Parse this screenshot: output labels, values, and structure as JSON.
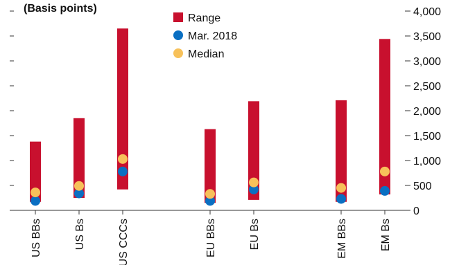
{
  "chart_data": {
    "type": "range-bar",
    "title": "",
    "subtitle": "(Basis points)",
    "categories": [
      "US BBs",
      "US Bs",
      "US CCCs",
      "EU BBs",
      "EU Bs",
      "EM BBs",
      "EM Bs"
    ],
    "groups": [
      [
        0,
        1,
        2
      ],
      [
        3,
        4
      ],
      [
        5,
        6
      ]
    ],
    "ylim": [
      0,
      4000
    ],
    "yticks": [
      0,
      500,
      1000,
      1500,
      2000,
      2500,
      3000,
      3500,
      4000
    ],
    "ytick_labels": [
      "0",
      "500",
      "1,000",
      "1,500",
      "2,000",
      "2,500",
      "3,000",
      "3,500",
      "4,000"
    ],
    "y_axis_position": "right",
    "grid": false,
    "legend_position": "top-center",
    "series": [
      {
        "name": "Range",
        "kind": "range",
        "color": "#c8102e",
        "low": [
          170,
          250,
          420,
          150,
          210,
          170,
          320
        ],
        "high": [
          1380,
          1850,
          3650,
          1630,
          2190,
          2210,
          3440
        ]
      },
      {
        "name": "Mar. 2018",
        "kind": "point",
        "color": "#0a6fc2",
        "values": [
          190,
          340,
          780,
          190,
          420,
          230,
          390
        ]
      },
      {
        "name": "Median",
        "kind": "point",
        "color": "#f7c15a",
        "values": [
          360,
          490,
          1030,
          330,
          560,
          450,
          780
        ]
      }
    ]
  }
}
